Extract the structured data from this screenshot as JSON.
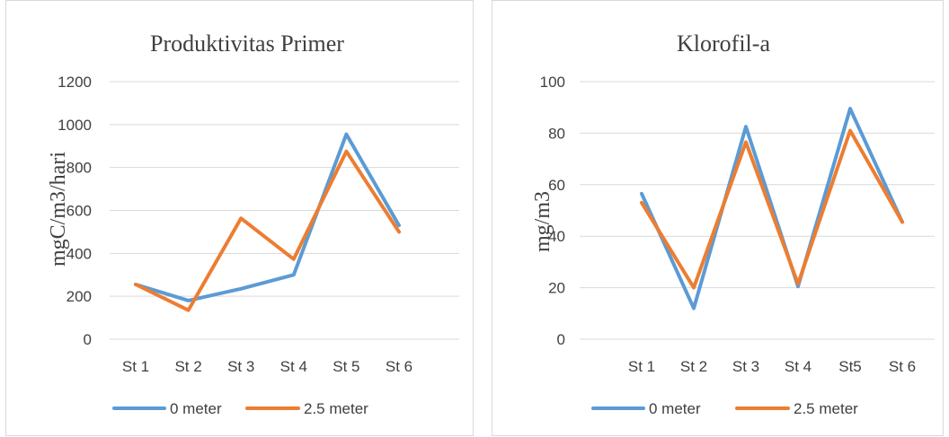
{
  "chart_data": [
    {
      "type": "line",
      "title": "Produktivitas Primer",
      "xlabel": "",
      "ylabel": "mgC/m3/hari",
      "ylim": [
        0,
        1200
      ],
      "yticks": [
        "0",
        "200",
        "400",
        "600",
        "800",
        "1000",
        "1200"
      ],
      "categories": [
        "St 1",
        "St 2",
        "St 3",
        "St 4",
        "St 5",
        "St 6"
      ],
      "grid": true,
      "legend_position": "bottom",
      "series": [
        {
          "name": "0 meter",
          "color": "#5B9BD5",
          "values": [
            255,
            180,
            235,
            300,
            955,
            530
          ]
        },
        {
          "name": "2.5 meter",
          "color": "#ED7D31",
          "values": [
            255,
            135,
            563,
            373,
            875,
            500
          ]
        }
      ]
    },
    {
      "type": "line",
      "title": "Klorofil-a",
      "xlabel": "",
      "ylabel": "mg/m3",
      "ylim": [
        0,
        100
      ],
      "yticks": [
        "0",
        "20",
        "40",
        "60",
        "80",
        "100"
      ],
      "categories": [
        "St 1",
        "St 2",
        "St 3",
        "St 4",
        "St5",
        "St 6"
      ],
      "grid": true,
      "legend_position": "bottom",
      "series": [
        {
          "name": "0 meter",
          "color": "#5B9BD5",
          "values": [
            56.5,
            12,
            82.5,
            20.5,
            89.5,
            45.5
          ]
        },
        {
          "name": "2.5 meter",
          "color": "#ED7D31",
          "values": [
            53,
            20,
            76.5,
            21.5,
            81,
            45.5
          ]
        }
      ]
    }
  ]
}
